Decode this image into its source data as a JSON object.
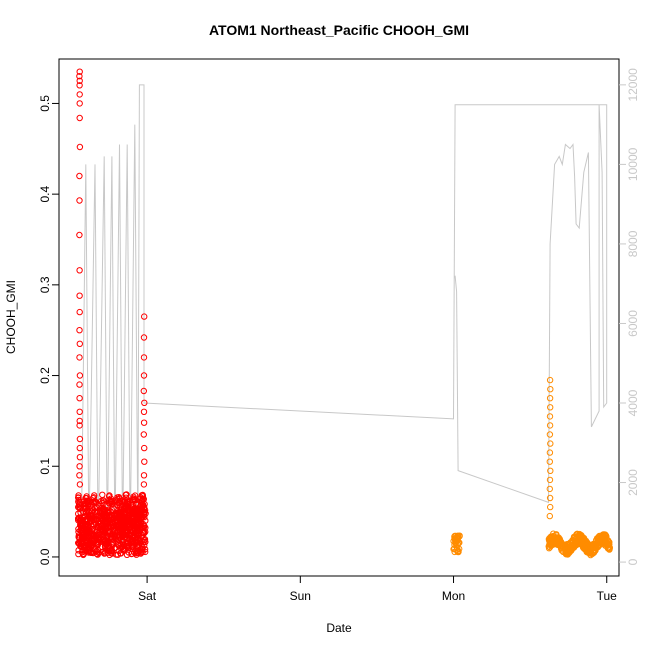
{
  "chart_data": {
    "type": "scatter",
    "title": "ATOM1 Northeast_Pacific CHOOH_GMI",
    "xlabel": "Date",
    "ylabel": "CHOOH_GMI",
    "x_ticks": [
      "Sat",
      "Sun",
      "Mon",
      "Tue"
    ],
    "x_tick_days": [
      1,
      2,
      3,
      4
    ],
    "xlim": [
      0.425,
      4.08
    ],
    "ylim": [
      -0.021,
      0.549
    ],
    "y_ticks": [
      0.0,
      0.1,
      0.2,
      0.3,
      0.4,
      0.5
    ],
    "y_tick_labels": [
      "0.0",
      "0.1",
      "0.2",
      "0.3",
      "0.4",
      "0.5"
    ],
    "y2lim": [
      -350,
      12650
    ],
    "y2_ticks": [
      0,
      2000,
      4000,
      6000,
      8000,
      10000,
      12000
    ],
    "y2_tick_labels": [
      "0",
      "2000",
      "4000",
      "6000",
      "8000",
      "10000",
      "12000"
    ],
    "colors": {
      "series_1": "#ff0000",
      "series_2": "#ff8c00",
      "altitude": "#c8c8c8"
    },
    "series": [
      {
        "key": "series_1",
        "marker": "open-circle",
        "bottom_cluster": {
          "x_range": [
            0.55,
            0.99
          ],
          "y_range": [
            0.002,
            0.07
          ]
        },
        "spikes": [
          {
            "x": 0.56,
            "y_values": [
              0.535,
              0.53,
              0.525,
              0.52,
              0.51,
              0.5,
              0.484,
              0.452,
              0.42,
              0.393,
              0.355,
              0.316,
              0.288,
              0.27,
              0.25,
              0.235,
              0.22,
              0.2,
              0.19,
              0.175,
              0.16,
              0.15,
              0.145,
              0.13,
              0.12,
              0.11,
              0.1,
              0.09,
              0.08
            ]
          },
          {
            "x": 0.98,
            "y_values": [
              0.265,
              0.242,
              0.22,
              0.2,
              0.183,
              0.17,
              0.16,
              0.148,
              0.135,
              0.12,
              0.105,
              0.09,
              0.08
            ]
          }
        ]
      },
      {
        "key": "series_2",
        "marker": "open-circle",
        "segments": [
          {
            "x_range": [
              3.0,
              3.04
            ],
            "y_range": [
              0.005,
              0.025
            ]
          },
          {
            "x_range": [
              3.62,
              4.02
            ],
            "y_range": [
              0.0,
              0.03
            ]
          }
        ],
        "spike": {
          "x": 3.63,
          "y_values": [
            0.195,
            0.185,
            0.175,
            0.165,
            0.155,
            0.145,
            0.135,
            0.125,
            0.115,
            0.105,
            0.095,
            0.085,
            0.075,
            0.065,
            0.055,
            0.045
          ]
        }
      },
      {
        "key": "altitude",
        "axis": "right",
        "style": "line",
        "points": [
          [
            0.57,
            300
          ],
          [
            0.6,
            10000
          ],
          [
            0.62,
            600
          ],
          [
            0.66,
            10000
          ],
          [
            0.68,
            500
          ],
          [
            0.72,
            10200
          ],
          [
            0.74,
            500
          ],
          [
            0.77,
            10200
          ],
          [
            0.79,
            500
          ],
          [
            0.82,
            10500
          ],
          [
            0.84,
            500
          ],
          [
            0.87,
            10500
          ],
          [
            0.89,
            500
          ],
          [
            0.92,
            11000
          ],
          [
            0.94,
            500
          ],
          [
            0.95,
            12000
          ],
          [
            0.98,
            12000
          ],
          [
            0.98,
            4000
          ],
          [
            3.0,
            3600
          ],
          [
            3.01,
            11500
          ],
          [
            4.0,
            11500
          ],
          [
            4.0,
            4000
          ],
          [
            3.98,
            3900
          ],
          [
            3.97,
            9800
          ],
          [
            3.95,
            11500
          ],
          [
            3.95,
            3800
          ],
          [
            3.9,
            3400
          ],
          [
            3.88,
            10300
          ],
          [
            3.85,
            9800
          ],
          [
            3.82,
            8400
          ],
          [
            3.8,
            8500
          ],
          [
            3.79,
            9700
          ],
          [
            3.78,
            10500
          ],
          [
            3.76,
            10400
          ],
          [
            3.73,
            10500
          ],
          [
            3.71,
            10000
          ],
          [
            3.69,
            10200
          ],
          [
            3.66,
            10000
          ],
          [
            3.63,
            8000
          ],
          [
            3.62,
            1500
          ],
          [
            3.03,
            2300
          ],
          [
            3.02,
            6800
          ],
          [
            3.01,
            7200
          ]
        ]
      }
    ]
  }
}
